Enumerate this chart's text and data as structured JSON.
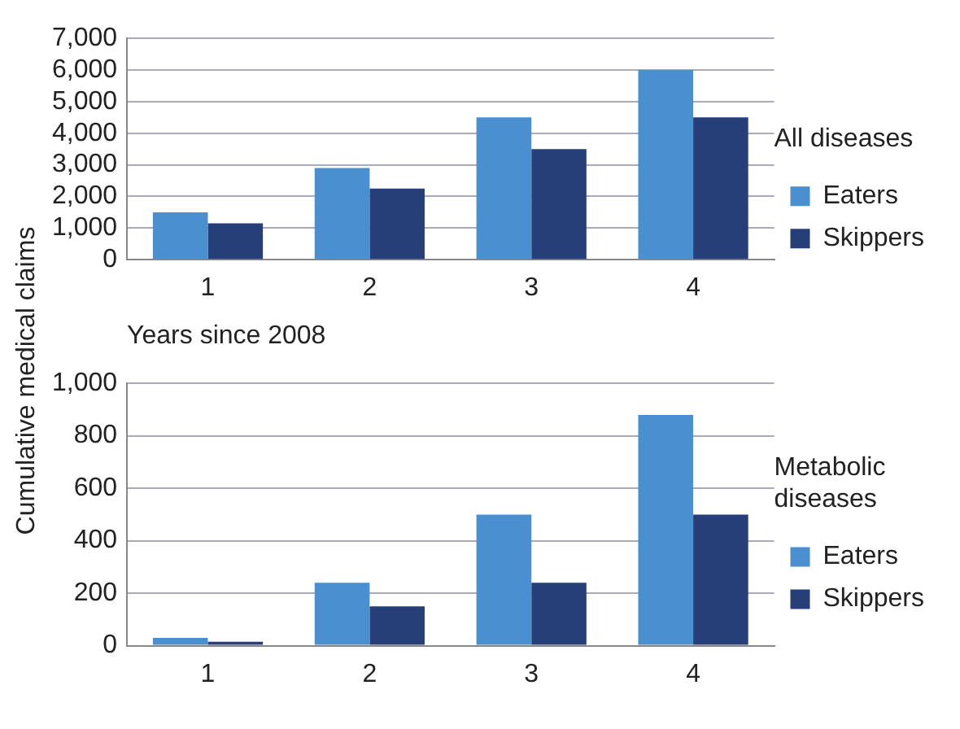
{
  "chart_data": [
    {
      "type": "bar",
      "ylabel": "Cumulative medical claims",
      "xlabel": "Years since 2008",
      "legend_title": "All diseases",
      "categories": [
        "1",
        "2",
        "3",
        "4"
      ],
      "series": [
        {
          "name": "Eaters",
          "color": "#4a8fd0",
          "values": [
            1500,
            2900,
            4500,
            6000
          ]
        },
        {
          "name": "Skippers",
          "color": "#273f78",
          "values": [
            1150,
            2250,
            3500,
            4500
          ]
        }
      ],
      "ylim": [
        0,
        7000
      ],
      "yticks": [
        {
          "value": 0,
          "label": "0"
        },
        {
          "value": 1000,
          "label": "1,000"
        },
        {
          "value": 2000,
          "label": "2,000"
        },
        {
          "value": 3000,
          "label": "3,000"
        },
        {
          "value": 4000,
          "label": "4,000"
        },
        {
          "value": 5000,
          "label": "5,000"
        },
        {
          "value": 6000,
          "label": "6,000"
        },
        {
          "value": 7000,
          "label": "7,000"
        }
      ],
      "grid": "y",
      "legend": "right"
    },
    {
      "type": "bar",
      "legend_title": "Metabolic diseases",
      "categories": [
        "1",
        "2",
        "3",
        "4"
      ],
      "series": [
        {
          "name": "Eaters",
          "color": "#4a8fd0",
          "values": [
            30,
            240,
            500,
            880
          ]
        },
        {
          "name": "Skippers",
          "color": "#273f78",
          "values": [
            15,
            150,
            240,
            500
          ]
        }
      ],
      "ylim": [
        0,
        1000
      ],
      "yticks": [
        {
          "value": 0,
          "label": "0"
        },
        {
          "value": 200,
          "label": "200"
        },
        {
          "value": 400,
          "label": "400"
        },
        {
          "value": 600,
          "label": "600"
        },
        {
          "value": 800,
          "label": "800"
        },
        {
          "value": 1000,
          "label": "1,000"
        }
      ],
      "grid": "y",
      "legend": "right"
    }
  ]
}
